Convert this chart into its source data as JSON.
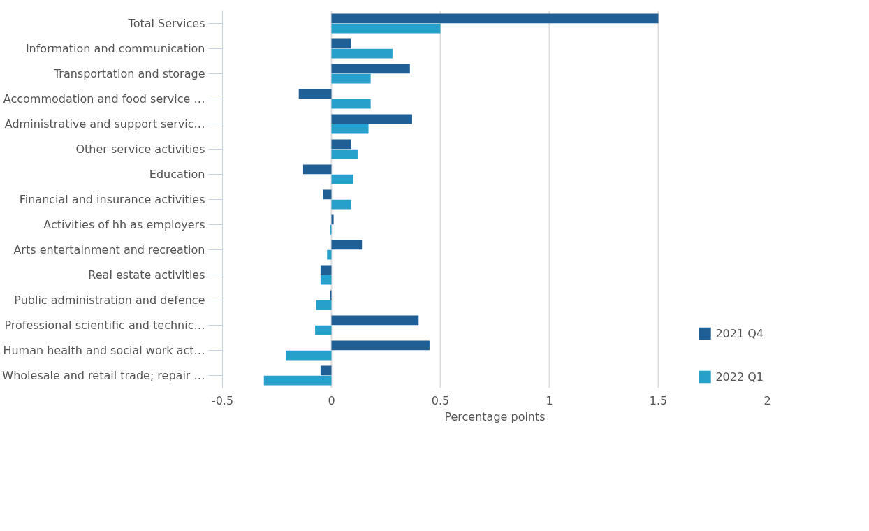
{
  "chart_data": {
    "type": "bar",
    "orientation": "horizontal",
    "xlabel": "Percentage points",
    "categories": [
      "Total Services",
      "Information and communication",
      "Transportation and storage",
      "Accommodation and food service …",
      "Administrative and support servic…",
      "Other service activities",
      "Education",
      "Financial and insurance activities",
      "Activities of hh as employers",
      "Arts entertainment and recreation",
      "Real estate activities",
      "Public administration and defence",
      "Professional scientific and technic…",
      "Human health and social work act…",
      "Wholesale and retail trade; repair …"
    ],
    "series": [
      {
        "name": "2021 Q4",
        "color": "#1f5f96",
        "values": [
          1.5,
          0.09,
          0.36,
          -0.15,
          0.37,
          0.09,
          -0.13,
          -0.04,
          0.01,
          0.14,
          -0.05,
          -0.005,
          0.4,
          0.45,
          -0.05
        ]
      },
      {
        "name": "2022 Q1",
        "color": "#27a0cc",
        "values": [
          0.5,
          0.28,
          0.18,
          0.18,
          0.17,
          0.12,
          0.1,
          0.09,
          -0.005,
          -0.02,
          -0.05,
          -0.07,
          -0.075,
          -0.21,
          -0.31
        ]
      }
    ],
    "xlim": [
      -0.5,
      2
    ],
    "xticks": [
      -0.5,
      0,
      0.5,
      1,
      1.5,
      2
    ],
    "grid": "x",
    "legend": "bottom right"
  }
}
